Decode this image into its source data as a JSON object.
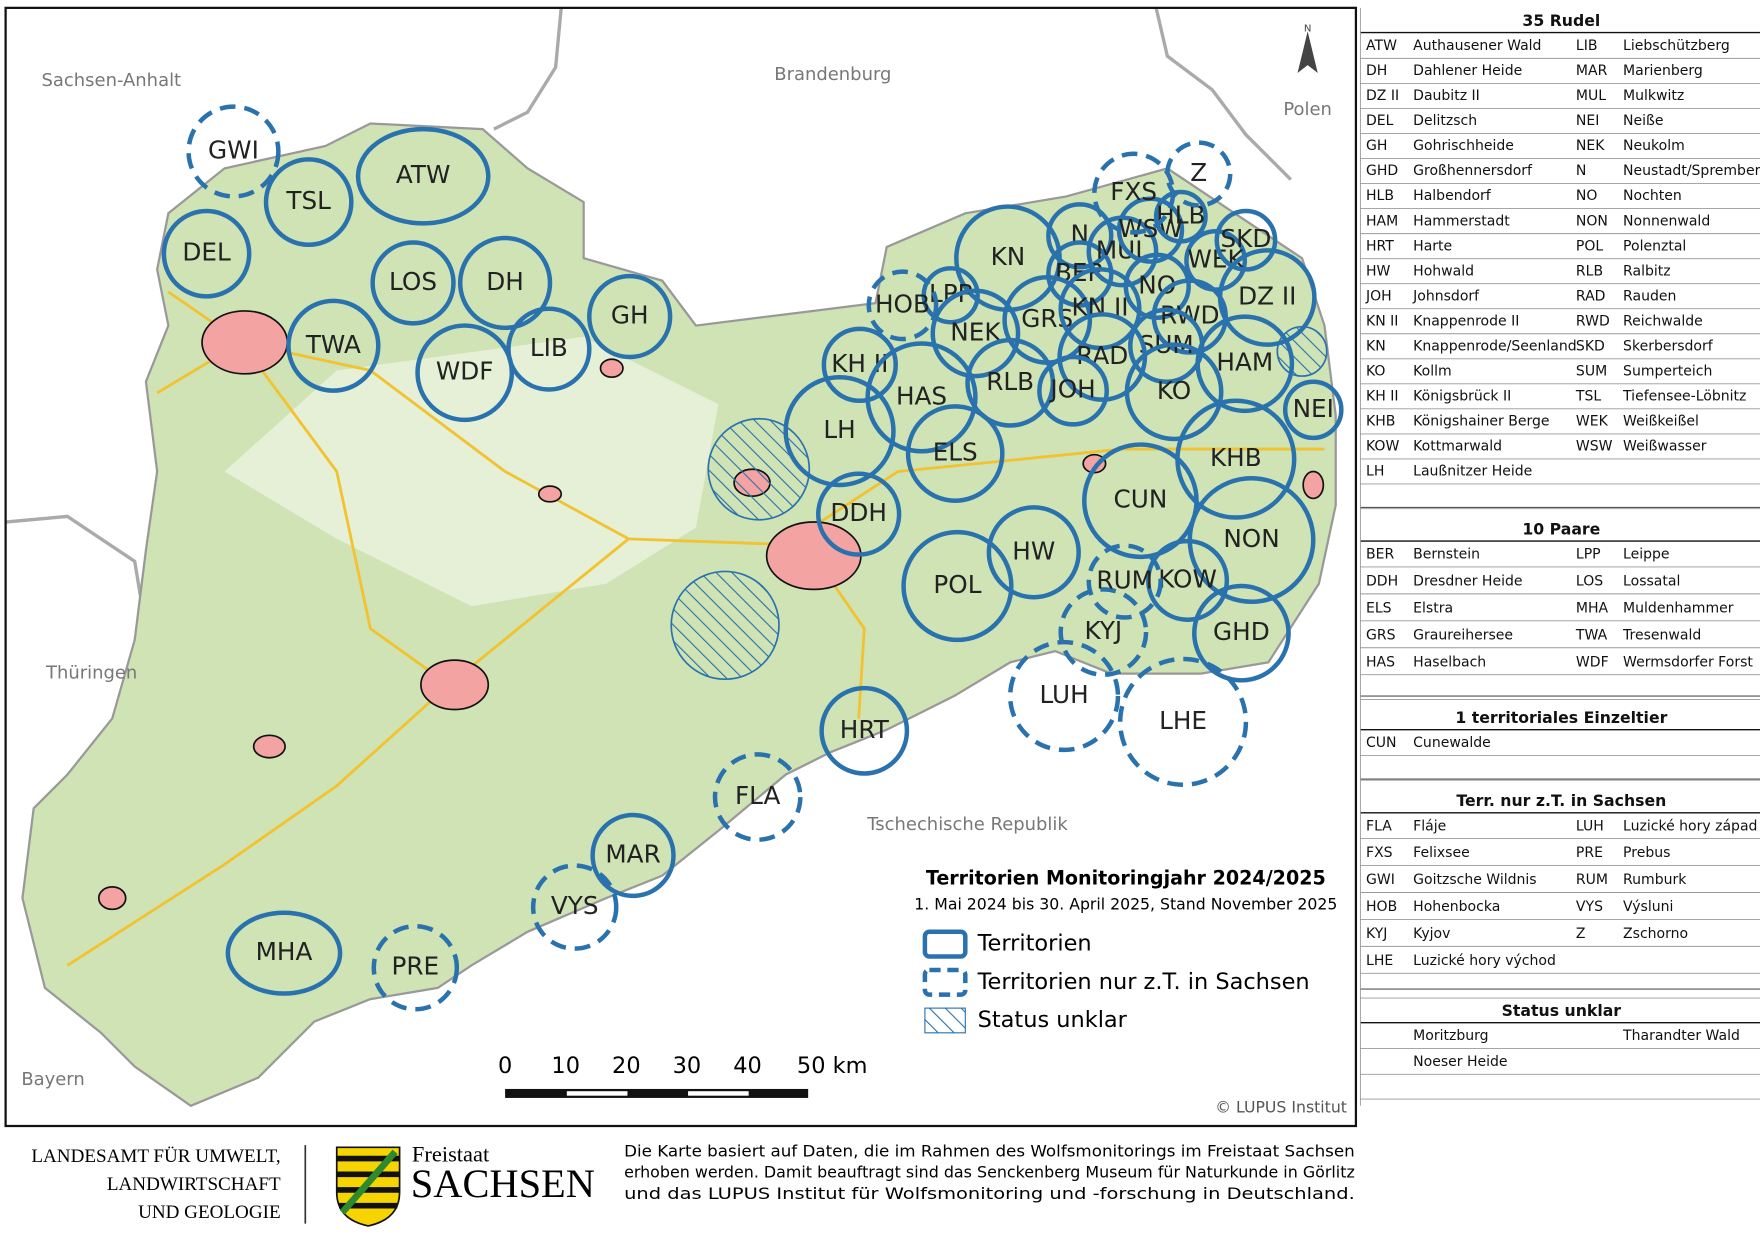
{
  "map": {
    "regions": [
      "Sachsen-Anhalt",
      "Brandenburg",
      "Polen",
      "Thüringen",
      "Bayern",
      "Tschechische Republik"
    ],
    "north": "N",
    "territories": [
      "ATW",
      "TSL",
      "DEL",
      "LOS",
      "DH",
      "TWA",
      "WDF",
      "LIB",
      "GH",
      "KN",
      "N",
      "BER",
      "MUL",
      "WSW",
      "HLB",
      "WEK",
      "SKD",
      "LPP",
      "GRS",
      "KN II",
      "NO",
      "NEK",
      "RWD",
      "SUM",
      "DZ II",
      "HAM",
      "KH II",
      "HAS",
      "RLB",
      "RAD",
      "JOH",
      "KO",
      "NEI",
      "LH",
      "ELS",
      "KHB",
      "DDH",
      "CUN",
      "HW",
      "NON",
      "POL",
      "KOW",
      "GHD",
      "HRT",
      "MAR",
      "MHA"
    ],
    "partial_territories": [
      "GWI",
      "FXS",
      "Z",
      "HOB",
      "FLA",
      "VYS",
      "PRE",
      "KYJ",
      "LUH",
      "LHE",
      "RUM"
    ],
    "scale_bar": [
      "0",
      "10",
      "20",
      "30",
      "40",
      "50 km"
    ],
    "copyright": "© LUPUS Institut"
  },
  "legend": {
    "title": "Territorien Monitoringjahr 2024/2025",
    "subtitle": "1. Mai 2024 bis 30. April 2025, Stand November 2025",
    "items": [
      "Territorien",
      "Territorien nur z.T. in Sachsen",
      "Status unklar"
    ]
  },
  "sidebar": [
    {
      "title": "35 Rudel",
      "rows": [
        {
          "code": "ATW",
          "name": "Authausener Wald",
          "code2": "LIB",
          "name2": "Liebschützberg"
        },
        {
          "code": "DH",
          "name": "Dahlener Heide",
          "code2": "MAR",
          "name2": "Marienberg"
        },
        {
          "code": "DZ II",
          "name": "Daubitz II",
          "code2": "MUL",
          "name2": "Mulkwitz"
        },
        {
          "code": "DEL",
          "name": "Delitzsch",
          "code2": "NEI",
          "name2": "Neiße"
        },
        {
          "code": "GH",
          "name": "Gohrischheide",
          "code2": "NEK",
          "name2": "Neukolm"
        },
        {
          "code": "GHD",
          "name": "Großhennersdorf",
          "code2": "N",
          "name2": "Neustadt/Spremberg"
        },
        {
          "code": "HLB",
          "name": "Halbendorf",
          "code2": "NO",
          "name2": "Nochten"
        },
        {
          "code": "HAM",
          "name": "Hammerstadt",
          "code2": "NON",
          "name2": "Nonnenwald"
        },
        {
          "code": "HRT",
          "name": "Harte",
          "code2": "POL",
          "name2": "Polenztal"
        },
        {
          "code": "HW",
          "name": "Hohwald",
          "code2": "RLB",
          "name2": "Ralbitz"
        },
        {
          "code": "JOH",
          "name": "Johnsdorf",
          "code2": "RAD",
          "name2": "Rauden"
        },
        {
          "code": "KN II",
          "name": "Knappenrode II",
          "code2": "RWD",
          "name2": "Reichwalde"
        },
        {
          "code": "KN",
          "name": "Knappenrode/Seenland",
          "code2": "SKD",
          "name2": "Skerbersdorf"
        },
        {
          "code": "KO",
          "name": "Kollm",
          "code2": "SUM",
          "name2": "Sumperteich"
        },
        {
          "code": "KH II",
          "name": "Königsbrück II",
          "code2": "TSL",
          "name2": "Tiefensee-Löbnitz"
        },
        {
          "code": "KHB",
          "name": "Königshainer Berge",
          "code2": "WEK",
          "name2": "Weißkeißel"
        },
        {
          "code": "KOW",
          "name": "Kottmarwald",
          "code2": "WSW",
          "name2": "Weißwasser"
        },
        {
          "code": "LH",
          "name": "Laußnitzer Heide"
        }
      ]
    },
    {
      "title": "10 Paare",
      "rows": [
        {
          "code": "BER",
          "name": "Bernstein",
          "code2": "LPP",
          "name2": "Leippe"
        },
        {
          "code": "DDH",
          "name": "Dresdner Heide",
          "code2": "LOS",
          "name2": "Lossatal"
        },
        {
          "code": "ELS",
          "name": "Elstra",
          "code2": "MHA",
          "name2": "Muldenhammer"
        },
        {
          "code": "GRS",
          "name": "Graureihersee",
          "code2": "TWA",
          "name2": "Tresenwald"
        },
        {
          "code": "HAS",
          "name": "Haselbach",
          "code2": "WDF",
          "name2": "Wermsdorfer Forst"
        }
      ]
    },
    {
      "title": "1 territoriales Einzeltier",
      "rows": [
        {
          "code": "CUN",
          "name": "Cunewalde"
        }
      ]
    },
    {
      "title": "Terr. nur z.T. in Sachsen",
      "rows": [
        {
          "code": "FLA",
          "name": "Fláje",
          "code2": "LUH",
          "name2": "Luzické hory západ"
        },
        {
          "code": "FXS",
          "name": "Felixsee",
          "code2": "PRE",
          "name2": "Prebus"
        },
        {
          "code": "GWI",
          "name": "Goitzsche Wildnis",
          "code2": "RUM",
          "name2": "Rumburk"
        },
        {
          "code": "HOB",
          "name": "Hohenbocka",
          "code2": "VYS",
          "name2": "Výsluni"
        },
        {
          "code": "KYJ",
          "name": "Kyjov",
          "code2": "Z",
          "name2": "Zschorno"
        },
        {
          "code": "LHE",
          "name": "Luzické hory východ"
        }
      ]
    },
    {
      "title": "Status unklar",
      "rows": [
        {
          "name": "Moritzburg",
          "name2": "Tharandter Wald"
        },
        {
          "name": "Noeser Heide"
        }
      ]
    }
  ],
  "footer": {
    "agency": [
      "LANDESAMT FÜR UMWELT,",
      "LANDWIRTSCHAFT",
      "UND GEOLOGIE"
    ],
    "state": [
      "Freistaat",
      "SACHSEN"
    ],
    "note": [
      "Die Karte basiert auf Daten, die im Rahmen des Wolfsmonitorings im Freistaat Sachsen",
      "erhoben werden. Damit beauftragt sind das Senckenberg Museum für Naturkunde in Görlitz",
      "und das LUPUS Institut für Wolfsmonitoring und -forschung in Deutschland."
    ]
  }
}
